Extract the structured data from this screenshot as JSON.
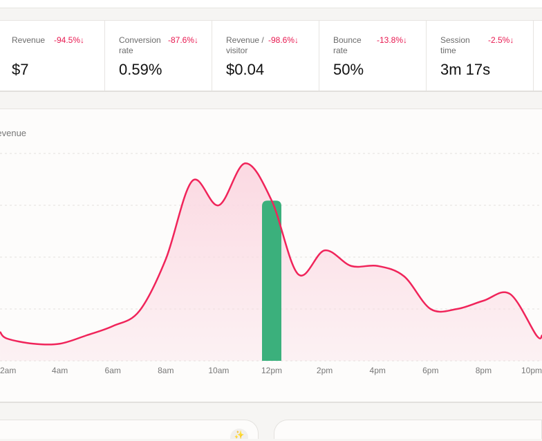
{
  "metrics": [
    {
      "label": "Revenue",
      "change": "-94.5%↓",
      "value": "$7"
    },
    {
      "label": "Conversion rate",
      "change": "-87.6%↓",
      "value": "0.59%"
    },
    {
      "label": "Revenue / visitor",
      "change": "-98.6%↓",
      "value": "$0.04"
    },
    {
      "label": "Bounce rate",
      "change": "-13.8%↓",
      "value": "50%"
    },
    {
      "label": "Session time",
      "change": "-2.5%↓",
      "value": "3m 17s"
    }
  ],
  "colors": {
    "line": "#f0245a",
    "area": "#fbd9e2",
    "highlight_bar": "#3bb07c",
    "negative_change": "#e8174f"
  },
  "icons": {
    "sparkle": "sparkle-icon"
  },
  "chart_data": {
    "type": "line",
    "ylabel": "Revenue",
    "x_tick_labels": [
      "2am",
      "4am",
      "6am",
      "8am",
      "10am",
      "12pm",
      "2pm",
      "4pm",
      "6pm",
      "8pm",
      "10pm"
    ],
    "x_hours": [
      1.74,
      2,
      3,
      4,
      5,
      6,
      7,
      8,
      9,
      10,
      11,
      12,
      13,
      14,
      15,
      16,
      17,
      18,
      19,
      20,
      21,
      22,
      22.3
    ],
    "values": [
      0.56,
      0.43,
      0.33,
      0.33,
      0.49,
      0.67,
      0.96,
      1.96,
      3.47,
      3.0,
      3.81,
      3.09,
      1.67,
      2.13,
      1.83,
      1.83,
      1.63,
      1.0,
      1.0,
      1.16,
      1.29,
      0.49,
      0.49
    ],
    "ylim": [
      0,
      4
    ],
    "grid": true,
    "highlight": {
      "x_label": "12pm",
      "value": 3.09
    }
  }
}
